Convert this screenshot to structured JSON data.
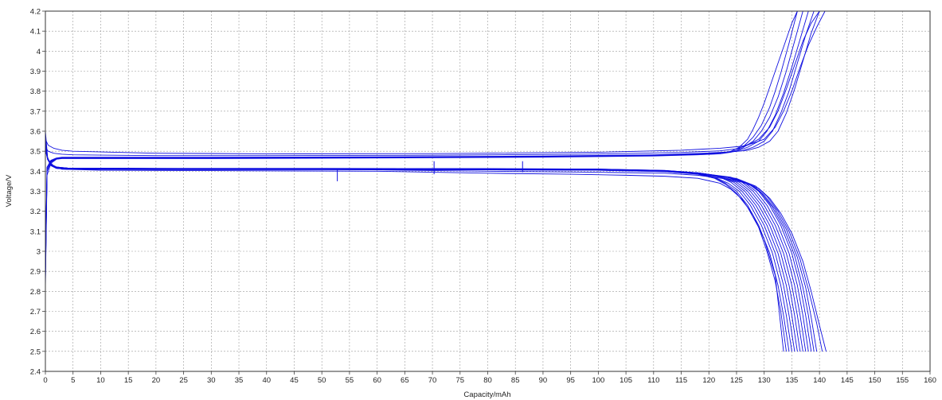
{
  "chart_data": {
    "type": "line",
    "xlabel": "Capacity/mAh",
    "ylabel": "Voltage/V",
    "xlim": [
      0,
      160
    ],
    "ylim": [
      2.4,
      4.2
    ],
    "x_ticks": [
      0,
      5,
      10,
      15,
      20,
      25,
      30,
      35,
      40,
      45,
      50,
      55,
      60,
      65,
      70,
      75,
      80,
      85,
      90,
      95,
      100,
      105,
      110,
      115,
      120,
      125,
      130,
      135,
      140,
      145,
      150,
      155,
      160
    ],
    "y_ticks": [
      2.4,
      2.5,
      2.6,
      2.7,
      2.8,
      2.9,
      3.0,
      3.1,
      3.2,
      3.3,
      3.4,
      3.5,
      3.6,
      3.7,
      3.8,
      3.9,
      4.0,
      4.1,
      4.2
    ],
    "x_tick_labels": [
      "0",
      "5",
      "10",
      "15",
      "20",
      "25",
      "30",
      "35",
      "40",
      "45",
      "50",
      "55",
      "60",
      "65",
      "70",
      "75",
      "80",
      "85",
      "90",
      "95",
      "100",
      "105",
      "110",
      "115",
      "120",
      "125",
      "130",
      "135",
      "140",
      "145",
      "150",
      "155",
      "160"
    ],
    "y_tick_labels": [
      "2.4",
      "2.5",
      "2.6",
      "2.7",
      "2.8",
      "2.9",
      "3",
      "3.1",
      "3.2",
      "3.3",
      "3.4",
      "3.5",
      "3.6",
      "3.7",
      "3.8",
      "3.9",
      "4",
      "4.1",
      "4.2"
    ],
    "grid": true,
    "line_color": "#1010e0",
    "series": [
      {
        "kind": "charge",
        "x": [
          0,
          0.3,
          1.0,
          2.0,
          3.0,
          5,
          30,
          60,
          90,
          110,
          118,
          122,
          124,
          125.5,
          127,
          128,
          129,
          130,
          131,
          132,
          133,
          134,
          135,
          136
        ],
        "y": [
          2.82,
          3.38,
          3.44,
          3.46,
          3.465,
          3.465,
          3.465,
          3.468,
          3.472,
          3.478,
          3.485,
          3.49,
          3.5,
          3.52,
          3.56,
          3.61,
          3.67,
          3.74,
          3.82,
          3.9,
          3.98,
          4.06,
          4.14,
          4.2
        ]
      },
      {
        "kind": "charge",
        "x": [
          0,
          0.3,
          1.0,
          2.0,
          3.0,
          5,
          30,
          60,
          90,
          110,
          118,
          122,
          124,
          126,
          128,
          129.5,
          131,
          132.5,
          134,
          135.5,
          137
        ],
        "y": [
          2.85,
          3.4,
          3.445,
          3.46,
          3.463,
          3.463,
          3.463,
          3.466,
          3.47,
          3.476,
          3.482,
          3.487,
          3.495,
          3.515,
          3.55,
          3.6,
          3.67,
          3.77,
          3.9,
          4.05,
          4.2
        ]
      },
      {
        "kind": "charge",
        "x": [
          0,
          0.3,
          1.0,
          2.0,
          3.0,
          5,
          30,
          60,
          90,
          110,
          118,
          122,
          125,
          127,
          129,
          130.5,
          132,
          133.5,
          135,
          136.5,
          138
        ],
        "y": [
          2.88,
          3.41,
          3.45,
          3.462,
          3.466,
          3.466,
          3.466,
          3.469,
          3.473,
          3.479,
          3.486,
          3.492,
          3.5,
          3.52,
          3.55,
          3.6,
          3.68,
          3.79,
          3.92,
          4.06,
          4.2
        ]
      },
      {
        "kind": "charge",
        "x": [
          0,
          0.3,
          1.0,
          2.0,
          3.0,
          5,
          30,
          60,
          90,
          110,
          118,
          123,
          126,
          128,
          130,
          131.5,
          133,
          134.5,
          136,
          137.5,
          139
        ],
        "y": [
          2.9,
          3.42,
          3.452,
          3.464,
          3.468,
          3.468,
          3.468,
          3.47,
          3.474,
          3.48,
          3.487,
          3.494,
          3.502,
          3.52,
          3.55,
          3.6,
          3.69,
          3.8,
          3.94,
          4.08,
          4.2
        ]
      },
      {
        "kind": "charge",
        "x": [
          0,
          0.3,
          1.0,
          2.0,
          3.0,
          5,
          30,
          60,
          90,
          110,
          118,
          124,
          127,
          129,
          131,
          132.5,
          134,
          135.5,
          137,
          138.5,
          140
        ],
        "y": [
          2.92,
          3.42,
          3.455,
          3.466,
          3.47,
          3.47,
          3.47,
          3.472,
          3.476,
          3.482,
          3.489,
          3.497,
          3.505,
          3.52,
          3.55,
          3.6,
          3.69,
          3.81,
          3.95,
          4.09,
          4.2
        ]
      },
      {
        "kind": "charge",
        "x": [
          0,
          0.3,
          1.0,
          2.0,
          3.0,
          5,
          30,
          60,
          90,
          110,
          118,
          123,
          125,
          126.5,
          128,
          129.5,
          131,
          132,
          133,
          134.5,
          136
        ],
        "y": [
          2.86,
          3.4,
          3.448,
          3.462,
          3.466,
          3.466,
          3.466,
          3.469,
          3.473,
          3.479,
          3.486,
          3.493,
          3.505,
          3.53,
          3.57,
          3.63,
          3.72,
          3.8,
          3.89,
          4.04,
          4.2
        ]
      },
      {
        "kind": "charge",
        "x": [
          0,
          0.5,
          1.5,
          3.0,
          5,
          20,
          40,
          70,
          100,
          115,
          122,
          126,
          128,
          130,
          132,
          133.5,
          135,
          136.5,
          138,
          139.5,
          141
        ],
        "y": [
          3.56,
          3.53,
          3.515,
          3.505,
          3.5,
          3.49,
          3.487,
          3.488,
          3.495,
          3.505,
          3.515,
          3.525,
          3.54,
          3.56,
          3.62,
          3.7,
          3.8,
          3.92,
          4.03,
          4.12,
          4.2
        ]
      },
      {
        "kind": "charge",
        "x": [
          0,
          0.5,
          1.5,
          3.0,
          5,
          20,
          40,
          70,
          100,
          115,
          122,
          125,
          127,
          129,
          131,
          132.5,
          134,
          135.5,
          137,
          138.5,
          140
        ],
        "y": [
          3.52,
          3.5,
          3.49,
          3.485,
          3.482,
          3.478,
          3.478,
          3.48,
          3.486,
          3.494,
          3.502,
          3.512,
          3.53,
          3.56,
          3.62,
          3.7,
          3.81,
          3.93,
          4.05,
          4.14,
          4.2
        ]
      },
      {
        "kind": "discharge",
        "x": [
          0,
          0.4,
          1.0,
          2.0,
          4,
          20,
          50,
          80,
          100,
          112,
          118,
          121,
          123,
          125,
          127,
          129,
          130.5,
          132,
          133,
          134
        ],
        "y": [
          3.6,
          3.47,
          3.43,
          3.415,
          3.41,
          3.408,
          3.408,
          3.407,
          3.405,
          3.398,
          3.385,
          3.365,
          3.335,
          3.29,
          3.22,
          3.12,
          3.0,
          2.85,
          2.7,
          2.5
        ]
      },
      {
        "kind": "discharge",
        "x": [
          0,
          0.4,
          1.0,
          2.0,
          4,
          20,
          50,
          80,
          100,
          112,
          118,
          121,
          123,
          125,
          127,
          129,
          131,
          132.5,
          133.5,
          134.5
        ],
        "y": [
          3.58,
          3.46,
          3.428,
          3.414,
          3.41,
          3.408,
          3.408,
          3.407,
          3.405,
          3.398,
          3.386,
          3.368,
          3.34,
          3.3,
          3.23,
          3.13,
          2.99,
          2.83,
          2.68,
          2.5
        ]
      },
      {
        "kind": "discharge",
        "x": [
          0,
          0.4,
          1.0,
          2.0,
          4,
          20,
          50,
          80,
          100,
          112,
          118,
          121,
          123.5,
          125.5,
          127.5,
          129.5,
          131.5,
          133,
          134,
          135
        ],
        "y": [
          3.57,
          3.46,
          3.43,
          3.415,
          3.41,
          3.409,
          3.409,
          3.408,
          3.406,
          3.399,
          3.387,
          3.37,
          3.34,
          3.3,
          3.23,
          3.13,
          2.99,
          2.83,
          2.68,
          2.5
        ]
      },
      {
        "kind": "discharge",
        "x": [
          0,
          0.4,
          1.0,
          2.0,
          4,
          20,
          50,
          80,
          100,
          112,
          118,
          122,
          124,
          126,
          128,
          130,
          132,
          133.5,
          134.5,
          135.5
        ],
        "y": [
          3.56,
          3.46,
          3.43,
          3.416,
          3.411,
          3.41,
          3.41,
          3.409,
          3.407,
          3.4,
          3.388,
          3.37,
          3.345,
          3.3,
          3.23,
          3.13,
          2.99,
          2.83,
          2.68,
          2.5
        ]
      },
      {
        "kind": "discharge",
        "x": [
          0,
          0.4,
          1.0,
          2.0,
          4,
          20,
          50,
          80,
          100,
          112,
          118,
          122,
          124.5,
          126.5,
          128.5,
          130.5,
          132.5,
          134,
          135,
          136
        ],
        "y": [
          3.55,
          3.46,
          3.432,
          3.417,
          3.412,
          3.41,
          3.41,
          3.409,
          3.407,
          3.4,
          3.389,
          3.372,
          3.345,
          3.3,
          3.23,
          3.13,
          2.99,
          2.83,
          2.68,
          2.5
        ]
      },
      {
        "kind": "discharge",
        "x": [
          0,
          0.4,
          1.0,
          2.0,
          4,
          20,
          50,
          80,
          100,
          112,
          118,
          122,
          125,
          127,
          129,
          131,
          133,
          134.5,
          135.5,
          136.5
        ],
        "y": [
          3.55,
          3.46,
          3.432,
          3.418,
          3.413,
          3.411,
          3.411,
          3.41,
          3.408,
          3.401,
          3.39,
          3.373,
          3.345,
          3.3,
          3.23,
          3.13,
          2.99,
          2.83,
          2.68,
          2.5
        ]
      },
      {
        "kind": "discharge",
        "x": [
          0,
          0.4,
          1.0,
          2.0,
          4,
          20,
          50,
          80,
          100,
          112,
          118,
          122.5,
          125.5,
          127.5,
          129.5,
          131.5,
          133.5,
          135,
          136,
          137
        ],
        "y": [
          3.54,
          3.46,
          3.433,
          3.418,
          3.413,
          3.411,
          3.411,
          3.41,
          3.408,
          3.401,
          3.39,
          3.372,
          3.345,
          3.3,
          3.23,
          3.13,
          2.99,
          2.83,
          2.68,
          2.5
        ]
      },
      {
        "kind": "discharge",
        "x": [
          0,
          0.4,
          1.0,
          2.0,
          4,
          20,
          50,
          80,
          100,
          112,
          118,
          123,
          126,
          128,
          130,
          132,
          134,
          135.5,
          136.5,
          137.5
        ],
        "y": [
          3.54,
          3.46,
          3.433,
          3.419,
          3.414,
          3.412,
          3.412,
          3.411,
          3.409,
          3.402,
          3.391,
          3.372,
          3.345,
          3.3,
          3.23,
          3.13,
          2.99,
          2.83,
          2.68,
          2.5
        ]
      },
      {
        "kind": "discharge",
        "x": [
          0,
          0.4,
          1.0,
          2.0,
          4,
          20,
          50,
          80,
          100,
          112,
          118,
          123.5,
          126.5,
          128.5,
          130.5,
          132.5,
          134.5,
          136,
          137,
          138
        ],
        "y": [
          3.53,
          3.46,
          3.434,
          3.42,
          3.414,
          3.412,
          3.412,
          3.411,
          3.409,
          3.402,
          3.391,
          3.37,
          3.342,
          3.3,
          3.23,
          3.13,
          2.99,
          2.83,
          2.68,
          2.5
        ]
      },
      {
        "kind": "discharge",
        "x": [
          0,
          0.4,
          1.0,
          2.0,
          4,
          20,
          50,
          80,
          100,
          112,
          118,
          124,
          127,
          129,
          131,
          133,
          135,
          136.5,
          137.5,
          138.5
        ],
        "y": [
          3.53,
          3.46,
          3.434,
          3.42,
          3.415,
          3.413,
          3.413,
          3.412,
          3.41,
          3.403,
          3.392,
          3.37,
          3.34,
          3.3,
          3.23,
          3.13,
          2.99,
          2.83,
          2.68,
          2.5
        ]
      },
      {
        "kind": "discharge",
        "x": [
          0,
          0.4,
          1.0,
          2.0,
          4,
          20,
          50,
          80,
          100,
          112,
          118,
          124,
          127.5,
          129.5,
          131.5,
          133.5,
          135.5,
          137,
          138,
          139
        ],
        "y": [
          3.52,
          3.46,
          3.434,
          3.42,
          3.415,
          3.413,
          3.413,
          3.412,
          3.41,
          3.403,
          3.392,
          3.368,
          3.335,
          3.29,
          3.22,
          3.12,
          2.98,
          2.82,
          2.68,
          2.5
        ]
      },
      {
        "kind": "discharge",
        "x": [
          0,
          0.4,
          1.0,
          2.0,
          4,
          20,
          50,
          80,
          100,
          112,
          118,
          124.5,
          128,
          130,
          132,
          134,
          136,
          137.5,
          138.5,
          139.5
        ],
        "y": [
          3.52,
          3.46,
          3.435,
          3.421,
          3.416,
          3.414,
          3.414,
          3.413,
          3.411,
          3.404,
          3.392,
          3.366,
          3.33,
          3.28,
          3.21,
          3.11,
          2.97,
          2.82,
          2.67,
          2.5
        ]
      },
      {
        "kind": "discharge",
        "x": [
          0,
          0.4,
          1.0,
          2.0,
          4,
          20,
          50,
          80,
          100,
          112,
          118,
          125,
          128.5,
          130.5,
          132.5,
          134.5,
          136.5,
          138,
          139.5,
          140.5
        ],
        "y": [
          3.51,
          3.46,
          3.435,
          3.421,
          3.416,
          3.414,
          3.414,
          3.413,
          3.411,
          3.404,
          3.392,
          3.364,
          3.325,
          3.275,
          3.2,
          3.1,
          2.96,
          2.81,
          2.64,
          2.5
        ]
      },
      {
        "kind": "discharge",
        "x": [
          0,
          0.4,
          1.0,
          2.0,
          4,
          20,
          50,
          80,
          100,
          112,
          118,
          125,
          129,
          131,
          133,
          135,
          137,
          138.5,
          140,
          141.2
        ],
        "y": [
          3.51,
          3.46,
          3.435,
          3.421,
          3.416,
          3.414,
          3.41,
          3.4,
          3.395,
          3.39,
          3.38,
          3.355,
          3.315,
          3.265,
          3.19,
          3.09,
          2.95,
          2.8,
          2.63,
          2.5
        ]
      },
      {
        "kind": "discharge",
        "x": [
          0,
          0.5,
          1.5,
          3,
          10,
          30,
          60,
          80,
          95,
          105,
          112,
          118,
          122,
          124,
          126,
          128,
          130,
          132,
          133.5
        ],
        "y": [
          3.5,
          3.46,
          3.425,
          3.41,
          3.405,
          3.403,
          3.4,
          3.39,
          3.385,
          3.38,
          3.375,
          3.365,
          3.34,
          3.31,
          3.26,
          3.18,
          3.06,
          2.88,
          2.5
        ]
      }
    ],
    "glitches": [
      {
        "x": 52.8,
        "y_top": 3.415,
        "y_bottom": 3.35
      },
      {
        "x": 70.3,
        "y_top": 3.45,
        "y_bottom": 3.385
      },
      {
        "x": 86.3,
        "y_top": 3.45,
        "y_bottom": 3.395
      }
    ]
  }
}
